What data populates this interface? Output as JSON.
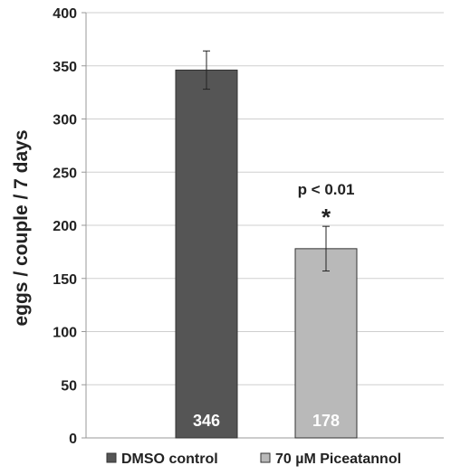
{
  "chart_data": {
    "type": "bar",
    "title": "",
    "xlabel": "",
    "ylabel": "eggs / couple / 7 days",
    "ylim": [
      0,
      400
    ],
    "yticks": [
      0,
      50,
      100,
      150,
      200,
      250,
      300,
      350,
      400
    ],
    "grid": true,
    "legend_position": "bottom",
    "categories": [
      "DMSO control",
      "70 µM Piceatannol"
    ],
    "values": [
      346,
      178
    ],
    "errors": [
      18,
      21
    ],
    "data_labels": [
      "346",
      "178"
    ],
    "colors": [
      "#555555",
      "#b9b9b9"
    ],
    "annotations": [
      {
        "text": "p < 0.01",
        "category_index": 1
      },
      {
        "text": "*",
        "category_index": 1
      }
    ]
  }
}
